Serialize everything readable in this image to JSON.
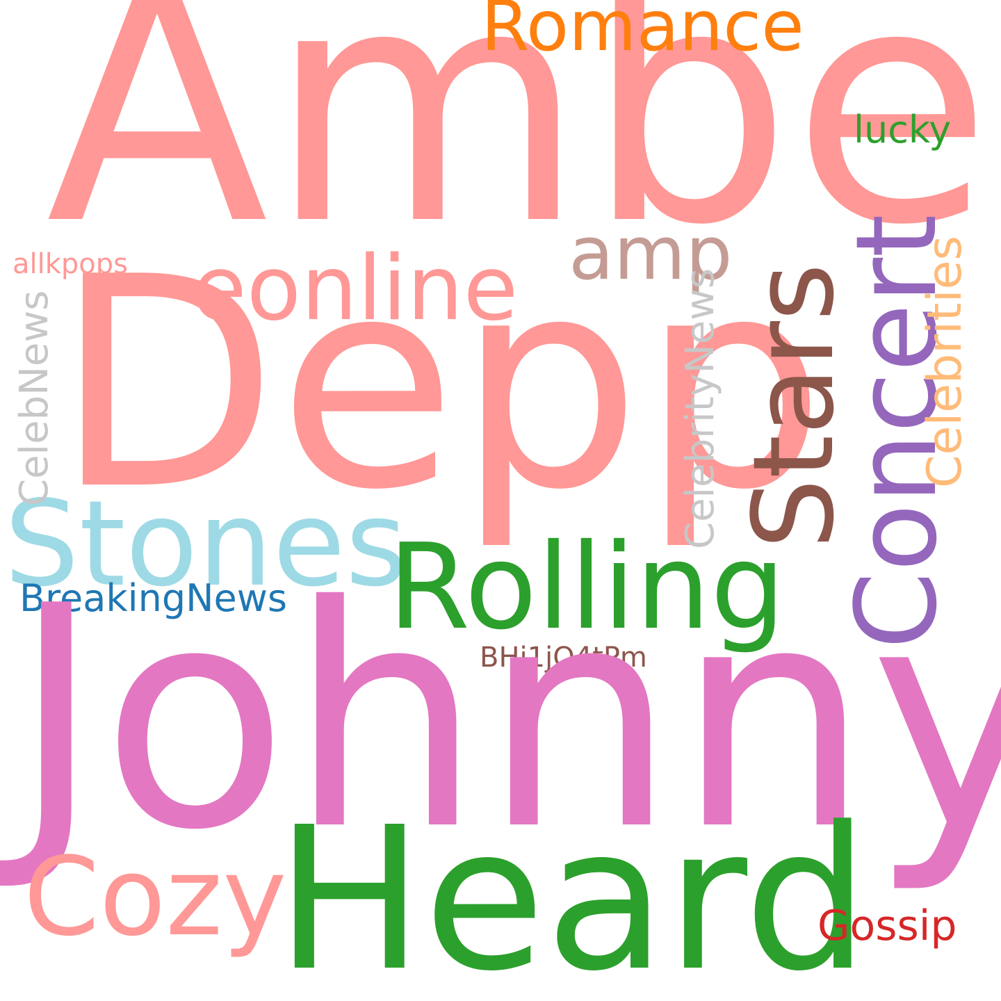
{
  "words": {
    "amber": "Amber",
    "depp": "Depp",
    "johnny": "Johnny",
    "heard": "Heard",
    "rolling": "Rolling",
    "stones": "Stones",
    "stars": "Stars",
    "concert": "Concert",
    "eonline": "eonline",
    "cozy": "Cozy",
    "romance": "Romance",
    "amp": "amp",
    "celebrities": "Celebrities",
    "celebritynews": "CelebrityNews",
    "celebnews": "CelebNews",
    "breakingnews": "BreakingNews",
    "lucky": "lucky",
    "gossip": "Gossip",
    "bhj": "BHj1jQ4tPm",
    "allkpops": "allkpops"
  },
  "colors": {
    "background": "#ffffff",
    "salmon": "#ff9896",
    "pink": "#e377c2",
    "green": "#2ca02c",
    "light_blue": "#9edae5",
    "brown": "#8c564b",
    "purple": "#9467bd",
    "orange": "#ff7f0e",
    "light_orange": "#ffbb78",
    "taupe": "#c49c94",
    "grey": "#c7c7c7",
    "blue": "#1f77b4",
    "red": "#d62728"
  }
}
